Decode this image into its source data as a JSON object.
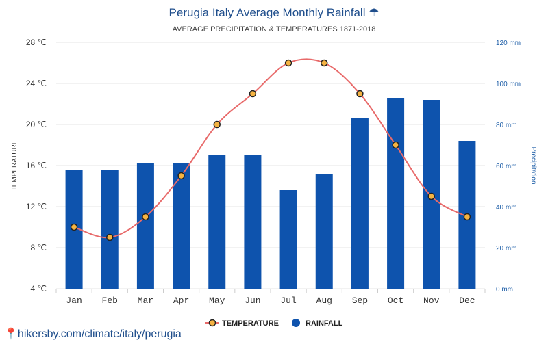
{
  "chart_data": {
    "type": "bar+line",
    "title": "Perugia Italy Average Monthly Rainfall",
    "title_icon": "☂",
    "subtitle": "AVERAGE PRECIPITATION & TEMPERATURES 1871-2018",
    "categories": [
      "Jan",
      "Feb",
      "Mar",
      "Apr",
      "May",
      "Jun",
      "Jul",
      "Aug",
      "Sep",
      "Oct",
      "Nov",
      "Dec"
    ],
    "series": [
      {
        "name": "TEMPERATURE",
        "type": "line",
        "axis": "left",
        "unit": "℃",
        "values": [
          10,
          9,
          11,
          15,
          20,
          23,
          26,
          26,
          23,
          18,
          13,
          11
        ]
      },
      {
        "name": "RAINFALL",
        "type": "bar",
        "axis": "right",
        "unit": "mm",
        "values": [
          58,
          58,
          61,
          61,
          65,
          65,
          48,
          56,
          83,
          93,
          92,
          72
        ]
      }
    ],
    "left_axis": {
      "label": "TEMPERATURE",
      "min": 4,
      "max": 28,
      "ticks": [
        "4 ℃",
        "8 ℃",
        "12 ℃",
        "16 ℃",
        "20 ℃",
        "24 ℃",
        "28 ℃"
      ]
    },
    "right_axis": {
      "label": "Precipitation",
      "min": 0,
      "max": 120,
      "ticks": [
        "0 mm",
        "20 mm",
        "40 mm",
        "60 mm",
        "80 mm",
        "100 mm",
        "120 mm"
      ]
    },
    "grid": true,
    "legend_position": "bottom-center",
    "colors": {
      "bar": "#0e53ad",
      "line": "#e86a6a",
      "marker_fill": "#f5b342",
      "marker_stroke": "#222222",
      "grid": "#e6e6e6",
      "title": "#1f4e8c"
    }
  },
  "footer": {
    "source_icon": "map-pin-icon",
    "source_text": "hikersby.com/climate/italy/perugia"
  }
}
